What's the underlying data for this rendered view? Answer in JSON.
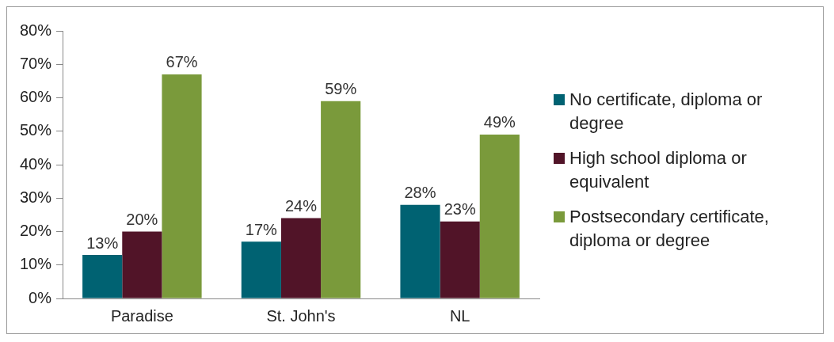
{
  "chart_data": {
    "type": "bar",
    "categories": [
      "Paradise",
      "St. John's",
      "NL"
    ],
    "series": [
      {
        "name": "No certificate, diploma or degree",
        "color": "#006272",
        "values": [
          13,
          17,
          28
        ],
        "value_labels": [
          "13%",
          "17%",
          "28%"
        ]
      },
      {
        "name": "High school diploma or equivalent",
        "color": "#511428",
        "values": [
          20,
          24,
          23
        ],
        "value_labels": [
          "20%",
          "24%",
          "23%"
        ]
      },
      {
        "name": "Postsecondary certificate, diploma or degree",
        "color": "#7a9a3b",
        "values": [
          67,
          59,
          49
        ],
        "value_labels": [
          "67%",
          "59%",
          "49%"
        ]
      }
    ],
    "ylim": [
      0,
      80
    ],
    "yticks": [
      {
        "value": 0,
        "label": "0%"
      },
      {
        "value": 10,
        "label": "10%"
      },
      {
        "value": 20,
        "label": "20%"
      },
      {
        "value": 30,
        "label": "30%"
      },
      {
        "value": 40,
        "label": "40%"
      },
      {
        "value": 50,
        "label": "50%"
      },
      {
        "value": 60,
        "label": "60%"
      },
      {
        "value": 70,
        "label": "70%"
      },
      {
        "value": 80,
        "label": "80%"
      }
    ],
    "grid": false,
    "legend": "right"
  }
}
